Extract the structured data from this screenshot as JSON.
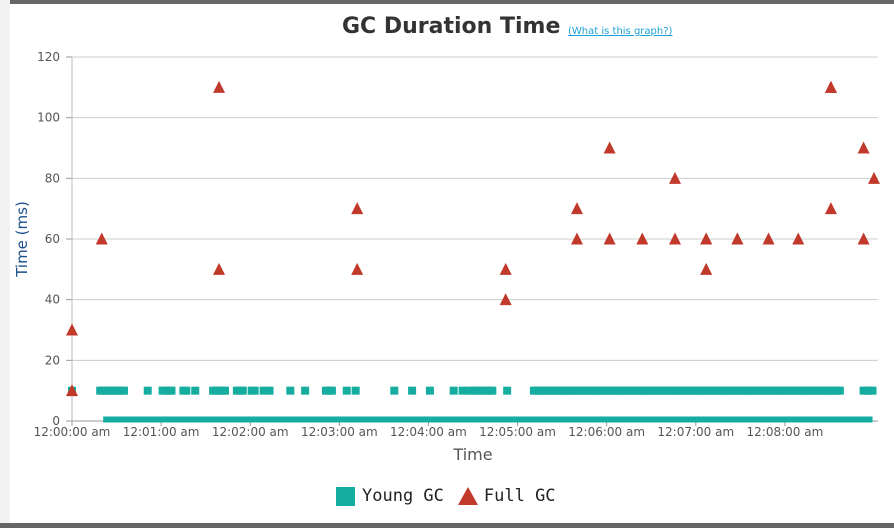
{
  "title": "GC Duration Time",
  "help_link": "(What is this graph?)",
  "colors": {
    "young": "#14ada0",
    "full": "#c0392b",
    "ylabel": "#1a4f8a"
  },
  "chart_data": {
    "type": "scatter",
    "title": "GC Duration Time",
    "xlabel": "Time",
    "ylabel": "Time (ms)",
    "ylim": [
      0,
      120
    ],
    "yticks": [
      0,
      20,
      40,
      60,
      80,
      100,
      120
    ],
    "xlim": [
      0,
      540
    ],
    "xtick_labels": [
      "12:00:00 am",
      "12:01:00 am",
      "12:02:00 am",
      "12:03:00 am",
      "12:04:00 am",
      "12:05:00 am",
      "12:06:00 am",
      "12:07:00 am",
      "12:08:00 am"
    ],
    "grid": true,
    "legend_position": "bottom",
    "series": [
      {
        "name": "Young GC",
        "marker": "square",
        "x": [
          0,
          19,
          21,
          23,
          25,
          27,
          29,
          31,
          33,
          35,
          51,
          61,
          63,
          65,
          67,
          75,
          77,
          83,
          95,
          97,
          99,
          101,
          103,
          111,
          113,
          115,
          121,
          123,
          129,
          133,
          147,
          157,
          171,
          173,
          175,
          185,
          191,
          217,
          229,
          241,
          257,
          263,
          267,
          271,
          273,
          275,
          279,
          281,
          283,
          293,
          311,
          313,
          315,
          317,
          319,
          321,
          323,
          325,
          327,
          329,
          331,
          333,
          335,
          337,
          339,
          341,
          343,
          345,
          347,
          349,
          351,
          353,
          355,
          357,
          359,
          361,
          363,
          365,
          367,
          369,
          371,
          373,
          375,
          377,
          379,
          381,
          383,
          385,
          387,
          389,
          391,
          393,
          395,
          397,
          399,
          401,
          403,
          405,
          407,
          409,
          411,
          413,
          415,
          417,
          419,
          421,
          423,
          425,
          427,
          429,
          431,
          433,
          435,
          437,
          439,
          441,
          443,
          445,
          447,
          449,
          451,
          453,
          455,
          457,
          459,
          461,
          463,
          465,
          467,
          469,
          471,
          473,
          475,
          477,
          479,
          481,
          483,
          485,
          487,
          489,
          491,
          493,
          495,
          497,
          499,
          501,
          503,
          505,
          507,
          509,
          511,
          513,
          515,
          517,
          533,
          535,
          537,
          539
        ],
        "y": [
          10,
          10,
          10,
          10,
          10,
          10,
          10,
          10,
          10,
          10,
          10,
          10,
          10,
          10,
          10,
          10,
          10,
          10,
          10,
          10,
          10,
          10,
          10,
          10,
          10,
          10,
          10,
          10,
          10,
          10,
          10,
          10,
          10,
          10,
          10,
          10,
          10,
          10,
          10,
          10,
          10,
          10,
          10,
          10,
          10,
          10,
          10,
          10,
          10,
          10,
          10,
          10,
          10,
          10,
          10,
          10,
          10,
          10,
          10,
          10,
          10,
          10,
          10,
          10,
          10,
          10,
          10,
          10,
          10,
          10,
          10,
          10,
          10,
          10,
          10,
          10,
          10,
          10,
          10,
          10,
          10,
          10,
          10,
          10,
          10,
          10,
          10,
          10,
          10,
          10,
          10,
          10,
          10,
          10,
          10,
          10,
          10,
          10,
          10,
          10,
          10,
          10,
          10,
          10,
          10,
          10,
          10,
          10,
          10,
          10,
          10,
          10,
          10,
          10,
          10,
          10,
          10,
          10,
          10,
          10,
          10,
          10,
          10,
          10,
          10,
          10,
          10,
          10,
          10,
          10,
          10,
          10,
          10,
          10,
          10,
          10,
          10,
          10,
          10,
          10,
          10,
          10,
          10,
          10,
          10,
          10,
          10,
          10,
          10,
          10,
          10,
          10,
          10,
          10,
          10,
          10,
          10,
          10
        ]
      },
      {
        "name": "Young GC",
        "marker": "square",
        "x_range": [
          21,
          539
        ],
        "y": 0.5
      },
      {
        "name": "Full GC",
        "marker": "triangle",
        "x": [
          0,
          0,
          20,
          99,
          99,
          192,
          192,
          292,
          292,
          340,
          340,
          362,
          362,
          384,
          406,
          406,
          427,
          427,
          427,
          448,
          448,
          469,
          489,
          511,
          511,
          511,
          533,
          533,
          540
        ],
        "y": [
          10,
          30,
          60,
          110,
          50,
          70,
          50,
          50,
          40,
          70,
          60,
          90,
          60,
          60,
          80,
          60,
          60,
          50,
          60,
          60,
          60,
          60,
          60,
          110,
          70,
          110,
          90,
          60,
          80
        ]
      }
    ]
  }
}
